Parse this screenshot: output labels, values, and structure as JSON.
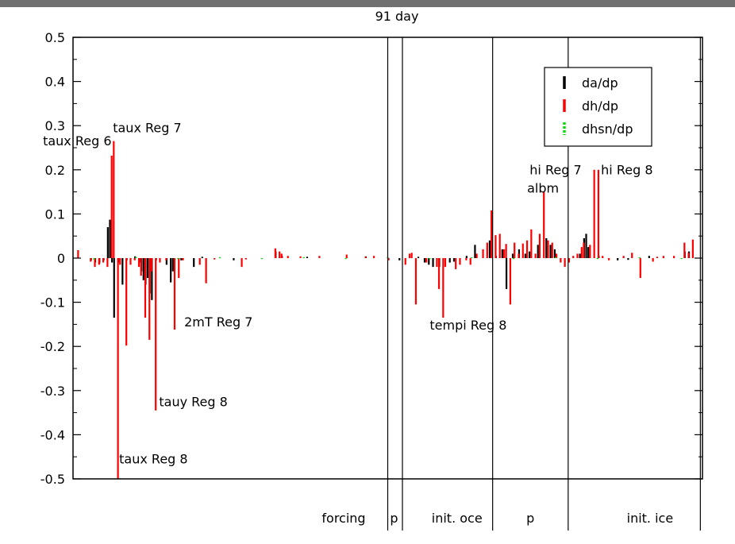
{
  "chart_data": {
    "type": "bar",
    "title": "91 day",
    "xlabel": "",
    "ylabel": "",
    "ylim": [
      -0.5,
      0.5
    ],
    "yticks": [
      -0.5,
      -0.4,
      -0.3,
      -0.2,
      -0.1,
      0,
      0.1,
      0.2,
      0.3,
      0.4,
      0.5
    ],
    "ytick_labels": [
      "-0.5",
      "-0.4",
      "-0.3",
      "-0.2",
      "-0.1",
      "0",
      "0.1",
      "0.2",
      "0.3",
      "0.4",
      "0.5"
    ],
    "xlim": [
      0,
      300
    ],
    "grid": false,
    "legend": {
      "placement": "top-right"
    },
    "series": [
      {
        "name": "da/dp",
        "color": "#000000",
        "points": [
          [
            9,
            -0.005
          ],
          [
            11,
            -0.01
          ],
          [
            13,
            -0.012
          ],
          [
            15,
            -0.005
          ],
          [
            17,
            0.07
          ],
          [
            18,
            0.087
          ],
          [
            19,
            -0.01
          ],
          [
            20,
            -0.135
          ],
          [
            22,
            -0.01
          ],
          [
            24,
            -0.06
          ],
          [
            26,
            -0.005
          ],
          [
            30,
            0.004
          ],
          [
            32,
            -0.01
          ],
          [
            33,
            -0.03
          ],
          [
            34,
            -0.05
          ],
          [
            35,
            -0.06
          ],
          [
            36,
            -0.045
          ],
          [
            37,
            -0.08
          ],
          [
            38,
            -0.095
          ],
          [
            40,
            -0.005
          ],
          [
            45,
            -0.015
          ],
          [
            47,
            -0.055
          ],
          [
            48,
            -0.03
          ],
          [
            52,
            -0.005
          ],
          [
            58,
            -0.02
          ],
          [
            62,
            0.003
          ],
          [
            77,
            -0.005
          ],
          [
            97,
            0.015
          ],
          [
            100,
            0.005
          ],
          [
            112,
            0.003
          ],
          [
            140,
            0.004
          ],
          [
            156,
            -0.005
          ],
          [
            165,
            0.003
          ],
          [
            168,
            -0.01
          ],
          [
            170,
            -0.015
          ],
          [
            172,
            -0.02
          ],
          [
            175,
            -0.02
          ],
          [
            180,
            -0.01
          ],
          [
            182,
            -0.008
          ],
          [
            188,
            0.005
          ],
          [
            192,
            0.03
          ],
          [
            199,
            0.04
          ],
          [
            202,
            0.005
          ],
          [
            205,
            0.02
          ],
          [
            207,
            -0.07
          ],
          [
            210,
            0.01
          ],
          [
            213,
            0.02
          ],
          [
            216,
            0.01
          ],
          [
            218,
            0.015
          ],
          [
            222,
            0.03
          ],
          [
            226,
            0.045
          ],
          [
            228,
            0.03
          ],
          [
            230,
            0.02
          ],
          [
            242,
            0.01
          ],
          [
            244,
            0.045
          ],
          [
            245,
            0.055
          ],
          [
            246,
            0.025
          ],
          [
            251,
            0.005
          ],
          [
            260,
            -0.005
          ],
          [
            265,
            -0.004
          ],
          [
            275,
            0.005
          ],
          [
            292,
            0.015
          ],
          [
            294,
            0.015
          ]
        ]
      },
      {
        "name": "dh/dp",
        "color": "#ff0000",
        "points": [
          [
            2,
            0.018
          ],
          [
            8,
            -0.008
          ],
          [
            10,
            -0.02
          ],
          [
            12,
            -0.015
          ],
          [
            14,
            -0.01
          ],
          [
            16,
            -0.02
          ],
          [
            18,
            0.232
          ],
          [
            19,
            0.265
          ],
          [
            21,
            -0.5
          ],
          [
            22,
            -0.015
          ],
          [
            25,
            -0.198
          ],
          [
            27,
            -0.015
          ],
          [
            29,
            -0.005
          ],
          [
            31,
            -0.02
          ],
          [
            32,
            -0.04
          ],
          [
            34,
            -0.135
          ],
          [
            36,
            -0.185
          ],
          [
            37,
            -0.03
          ],
          [
            39,
            -0.345
          ],
          [
            41,
            -0.01
          ],
          [
            44,
            -0.005
          ],
          [
            48,
            -0.162
          ],
          [
            50,
            -0.045
          ],
          [
            52,
            -0.005
          ],
          [
            60,
            -0.015
          ],
          [
            63,
            -0.057
          ],
          [
            67,
            -0.003
          ],
          [
            80,
            -0.02
          ],
          [
            82,
            -0.003
          ],
          [
            96,
            0.022
          ],
          [
            98,
            0.015
          ],
          [
            99,
            0.01
          ],
          [
            102,
            0.005
          ],
          [
            108,
            0.004
          ],
          [
            117,
            0.005
          ],
          [
            130,
            0.008
          ],
          [
            139,
            0.003
          ],
          [
            143,
            0.005
          ],
          [
            150,
            -0.005
          ],
          [
            158,
            -0.015
          ],
          [
            160,
            0.01
          ],
          [
            161,
            0.012
          ],
          [
            163,
            -0.105
          ],
          [
            168,
            -0.01
          ],
          [
            173,
            -0.02
          ],
          [
            174,
            -0.07
          ],
          [
            176,
            -0.135
          ],
          [
            177,
            -0.02
          ],
          [
            182,
            -0.025
          ],
          [
            184,
            -0.015
          ],
          [
            187,
            -0.005
          ],
          [
            189,
            -0.015
          ],
          [
            192,
            0.01
          ],
          [
            195,
            0.02
          ],
          [
            197,
            0.035
          ],
          [
            199,
            0.108
          ],
          [
            201,
            0.052
          ],
          [
            203,
            0.055
          ],
          [
            205,
            0.02
          ],
          [
            206,
            0.032
          ],
          [
            208,
            -0.105
          ],
          [
            210,
            0.035
          ],
          [
            212,
            0.01
          ],
          [
            214,
            0.033
          ],
          [
            216,
            0.04
          ],
          [
            218,
            0.065
          ],
          [
            220,
            0.01
          ],
          [
            222,
            0.055
          ],
          [
            224,
            0.15
          ],
          [
            226,
            0.04
          ],
          [
            228,
            0.035
          ],
          [
            230,
            0.01
          ],
          [
            232,
            -0.01
          ],
          [
            234,
            -0.02
          ],
          [
            236,
            -0.01
          ],
          [
            238,
            0.005
          ],
          [
            240,
            0.01
          ],
          [
            242,
            0.025
          ],
          [
            243,
            0.035
          ],
          [
            246,
            0.03
          ],
          [
            248,
            0.2
          ],
          [
            250,
            0.2
          ],
          [
            252,
            0.005
          ],
          [
            255,
            -0.005
          ],
          [
            262,
            0.005
          ],
          [
            266,
            0.012
          ],
          [
            270,
            -0.045
          ],
          [
            276,
            -0.008
          ],
          [
            278,
            0.003
          ],
          [
            281,
            0.005
          ],
          [
            286,
            0.005
          ],
          [
            291,
            0.035
          ],
          [
            293,
            0.012
          ],
          [
            295,
            0.042
          ]
        ]
      },
      {
        "name": "dhsn/dp",
        "color": "#00dd00",
        "points": [
          [
            10,
            -0.003
          ],
          [
            30,
            0.002
          ],
          [
            50,
            -0.002
          ],
          [
            70,
            0.002
          ],
          [
            90,
            -0.002
          ],
          [
            110,
            0.002
          ],
          [
            130,
            -0.002
          ],
          [
            150,
            0.002
          ],
          [
            170,
            -0.002
          ],
          [
            190,
            0.002
          ],
          [
            210,
            -0.002
          ],
          [
            230,
            0.002
          ],
          [
            250,
            -0.002
          ],
          [
            270,
            0.002
          ],
          [
            290,
            -0.002
          ]
        ]
      }
    ],
    "annotations": [
      {
        "text": "taux Reg 6",
        "x": 2,
        "y": 0.255,
        "anchor": "middle"
      },
      {
        "text": "taux Reg 7",
        "x": 19,
        "y": 0.285,
        "anchor": "start"
      },
      {
        "text": "2mT Reg 7",
        "x": 53,
        "y": -0.155,
        "anchor": "start"
      },
      {
        "text": "tauy Reg 8",
        "x": 41,
        "y": -0.335,
        "anchor": "start"
      },
      {
        "text": "taux Reg 8",
        "x": 22,
        "y": -0.465,
        "anchor": "start"
      },
      {
        "text": "tempi Reg 8",
        "x": 170,
        "y": -0.162,
        "anchor": "start"
      },
      {
        "text": "albm",
        "x": 224,
        "y": 0.148,
        "anchor": "middle"
      },
      {
        "text": "hi Reg 7",
        "x": 230,
        "y": 0.19,
        "anchor": "middle"
      },
      {
        "text": "hi Reg 8",
        "x": 264,
        "y": 0.19,
        "anchor": "middle"
      }
    ],
    "dividers": [
      150,
      157,
      200,
      236,
      299
    ],
    "section_labels": [
      {
        "text": "forcing",
        "x": 129
      },
      {
        "text": "p",
        "x": 153
      },
      {
        "text": "init. oce",
        "x": 183
      },
      {
        "text": "p",
        "x": 218
      },
      {
        "text": "init. ice",
        "x": 275
      }
    ]
  }
}
